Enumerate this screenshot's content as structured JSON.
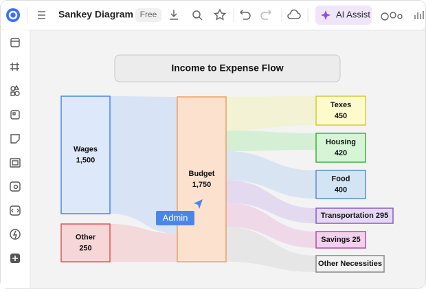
{
  "app": {
    "doc_title": "Sankey Diagram",
    "plan": "Free",
    "ai_button": "AI Assist",
    "cursor_user": "Admin"
  },
  "diagram": {
    "title": "Income to Expense Flow",
    "nodes": [
      {
        "label": "Wages",
        "value": "1,500"
      },
      {
        "label": "Other",
        "value": "250"
      },
      {
        "label": "Budget",
        "value": "1,750"
      },
      {
        "label": "Texes",
        "value": "450"
      },
      {
        "label": "Housing",
        "value": "420"
      },
      {
        "label": "Food",
        "value": "400"
      },
      {
        "label": "Transportation 295"
      },
      {
        "label": "Savings 25"
      },
      {
        "label": "Other Necessities"
      }
    ]
  }
}
